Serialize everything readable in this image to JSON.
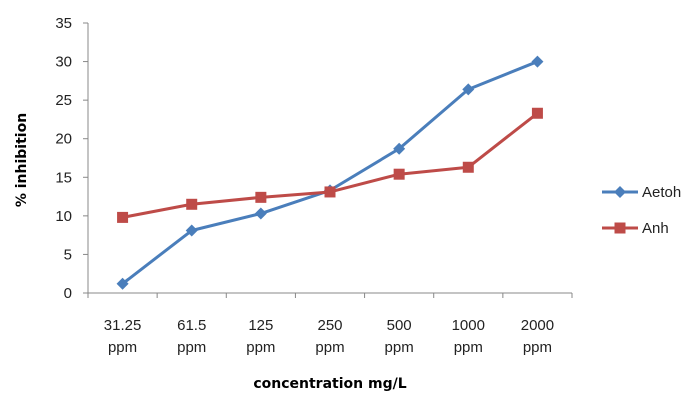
{
  "chart_data": {
    "type": "line",
    "title": "",
    "xlabel": "concentration mg/L",
    "ylabel": "% inhibition",
    "categories": [
      [
        "31.25",
        "ppm"
      ],
      [
        "61.5",
        "ppm"
      ],
      [
        "125",
        "ppm"
      ],
      [
        "250",
        "ppm"
      ],
      [
        "500",
        "ppm"
      ],
      [
        "1000",
        "ppm"
      ],
      [
        "2000",
        "ppm"
      ]
    ],
    "ylim": [
      0,
      35
    ],
    "yticks": [
      0,
      5,
      10,
      15,
      20,
      25,
      30,
      35
    ],
    "grid": false,
    "legend_position": "right",
    "series": [
      {
        "name": "Aetoh",
        "color": "#4a7ebb",
        "marker": "diamond",
        "values": [
          1.2,
          8.1,
          10.3,
          13.3,
          18.7,
          26.4,
          30.0
        ]
      },
      {
        "name": "Anh",
        "color": "#be4b48",
        "marker": "square",
        "values": [
          9.8,
          11.5,
          12.4,
          13.1,
          15.4,
          16.3,
          23.3
        ]
      }
    ]
  }
}
